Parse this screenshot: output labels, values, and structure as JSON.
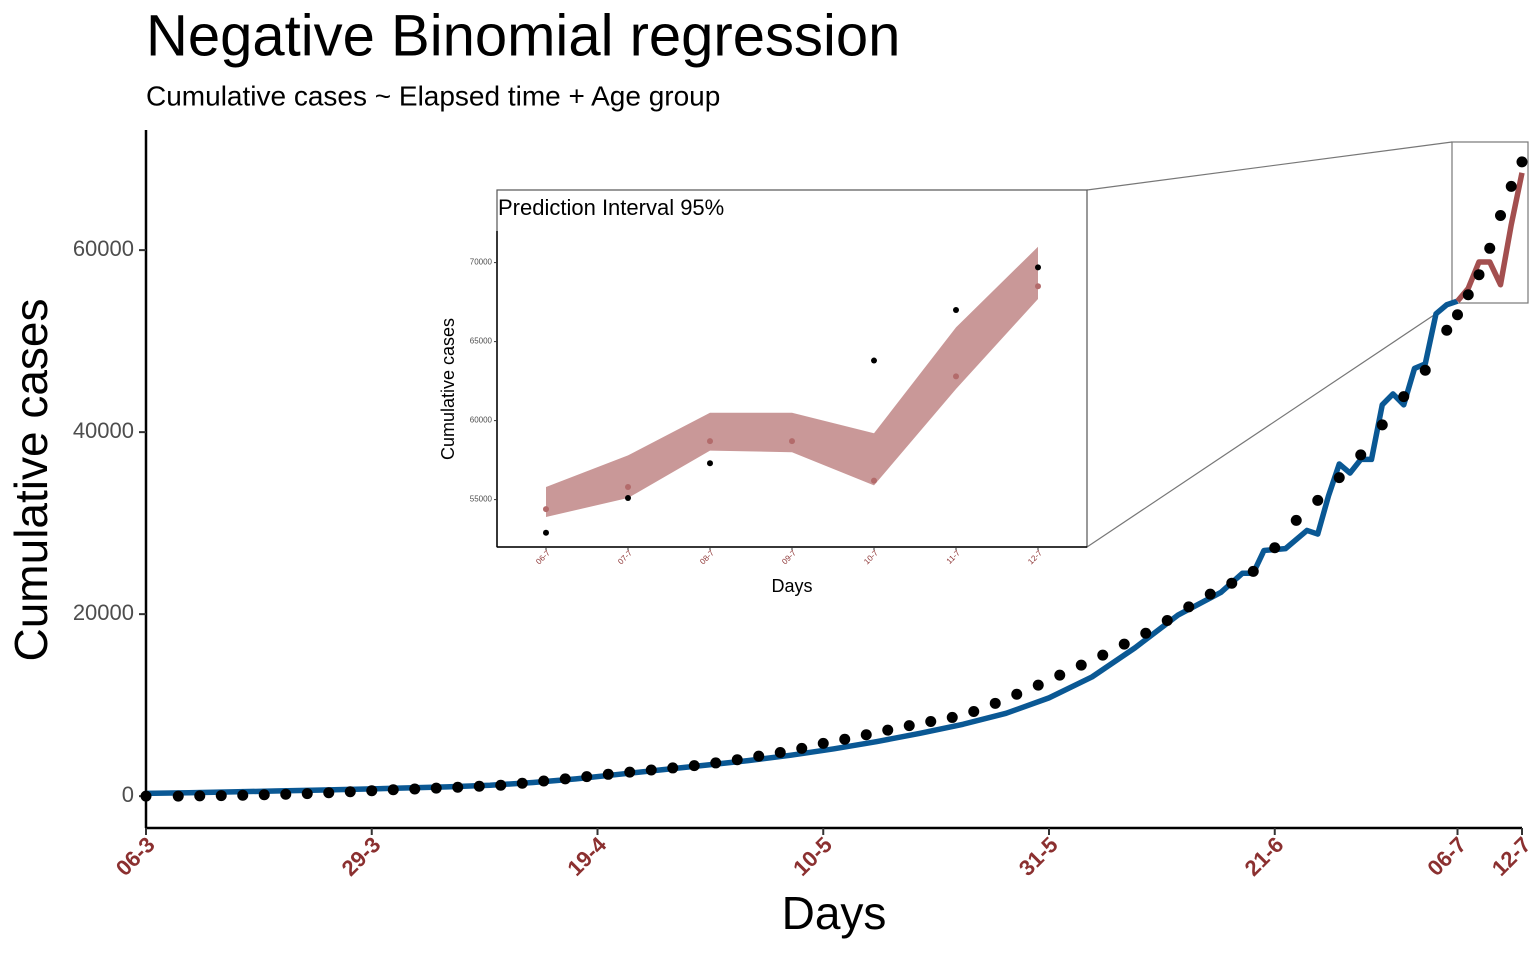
{
  "chart_data": [
    {
      "type": "line",
      "title": "Negative Binomial regression",
      "subtitle": "Cumulative cases ~ Elapsed time + Age group",
      "x_label": "Days",
      "y_label": "Cumulative cases",
      "xlim": [
        0,
        128
      ],
      "xticks": [
        {
          "value": 0,
          "label": "06-3"
        },
        {
          "value": 21,
          "label": "29-3"
        },
        {
          "value": 42,
          "label": "19-4"
        },
        {
          "value": 63,
          "label": "10-5"
        },
        {
          "value": 84,
          "label": "31-5"
        },
        {
          "value": 105,
          "label": "21-6"
        },
        {
          "value": 122,
          "label": "06-7"
        },
        {
          "value": 128,
          "label": "12-7"
        }
      ],
      "ylim": [
        -3500,
        73200
      ],
      "yticks": [
        0,
        20000,
        40000,
        60000
      ],
      "series": [
        {
          "type": "line",
          "color": "#0a5894",
          "x": [
            0,
            4,
            8,
            12,
            16,
            20,
            24,
            28,
            32,
            36,
            40,
            44,
            48,
            52,
            56,
            60,
            64,
            68,
            72,
            76,
            80,
            84,
            88,
            92,
            96,
            100,
            102,
            103,
            104,
            106,
            108,
            109,
            110,
            111,
            112,
            113,
            114,
            115,
            116,
            117,
            118,
            119,
            120,
            121,
            122
          ],
          "values": [
            300,
            380,
            470,
            560,
            660,
            770,
            890,
            1020,
            1200,
            1500,
            1900,
            2400,
            2900,
            3400,
            3900,
            4500,
            5200,
            6000,
            6900,
            7900,
            9100,
            10800,
            13100,
            16300,
            19900,
            22400,
            24500,
            24500,
            27000,
            27200,
            29200,
            28800,
            33000,
            36500,
            35500,
            37000,
            37000,
            43000,
            44200,
            43000,
            47000,
            47500,
            53000,
            54000,
            54400
          ]
        },
        {
          "type": "line",
          "color": "#a34f4f",
          "x": [
            122,
            123,
            124,
            125,
            126,
            127,
            128
          ],
          "values": [
            54400,
            55800,
            58700,
            58700,
            56200,
            62800,
            68500
          ]
        },
        {
          "type": "scatter",
          "color": "#000000",
          "x": [
            0,
            3,
            5,
            7,
            9,
            11,
            13,
            15,
            17,
            19,
            21,
            23,
            25,
            27,
            29,
            31,
            33,
            35,
            37,
            39,
            41,
            43,
            45,
            47,
            49,
            51,
            53,
            55,
            57,
            59,
            61,
            63,
            65,
            67,
            69,
            71,
            73,
            75,
            77,
            79,
            81,
            83,
            85,
            87,
            89,
            91,
            93,
            95,
            97,
            99,
            101,
            103,
            105,
            107,
            109,
            111,
            113,
            115,
            117,
            119,
            121,
            122,
            123,
            124,
            125,
            126,
            127,
            128
          ],
          "values": [
            0,
            0,
            30,
            60,
            100,
            150,
            210,
            280,
            370,
            480,
            600,
            700,
            790,
            880,
            980,
            1090,
            1200,
            1420,
            1660,
            1900,
            2150,
            2400,
            2640,
            2870,
            3100,
            3350,
            3650,
            4000,
            4400,
            4800,
            5250,
            5800,
            6250,
            6750,
            7250,
            7750,
            8200,
            8650,
            9300,
            10200,
            11200,
            12200,
            13300,
            14400,
            15500,
            16700,
            17900,
            19300,
            20800,
            22200,
            23400,
            24700,
            27300,
            30300,
            32500,
            35000,
            37500,
            40800,
            43900,
            46800,
            51200,
            52900,
            55100,
            57300,
            60200,
            63800,
            67000,
            69700
          ]
        }
      ]
    },
    {
      "type": "band",
      "title": "Prediction Interval 95%",
      "x_label": "Days",
      "y_label": "Cumulative cases",
      "categories": [
        "06-7",
        "07-7",
        "08-7",
        "09-7",
        "10-7",
        "11-7",
        "12-7"
      ],
      "ylim": [
        52000,
        72000
      ],
      "yticks": [
        55000,
        60000,
        65000,
        70000
      ],
      "series": [
        {
          "type": "band",
          "color": "#c99898",
          "lower": [
            53900,
            55100,
            58100,
            58000,
            55900,
            62000,
            67700
          ],
          "upper": [
            55800,
            57800,
            60500,
            60500,
            59200,
            65900,
            71000
          ]
        },
        {
          "type": "scatter",
          "color": "#b36b6b",
          "values": [
            54400,
            55800,
            58700,
            58700,
            56200,
            62800,
            68500
          ]
        },
        {
          "type": "scatter",
          "color": "#000000",
          "values": [
            52900,
            55100,
            57300,
            null,
            63800,
            67000,
            69700
          ]
        }
      ]
    }
  ]
}
